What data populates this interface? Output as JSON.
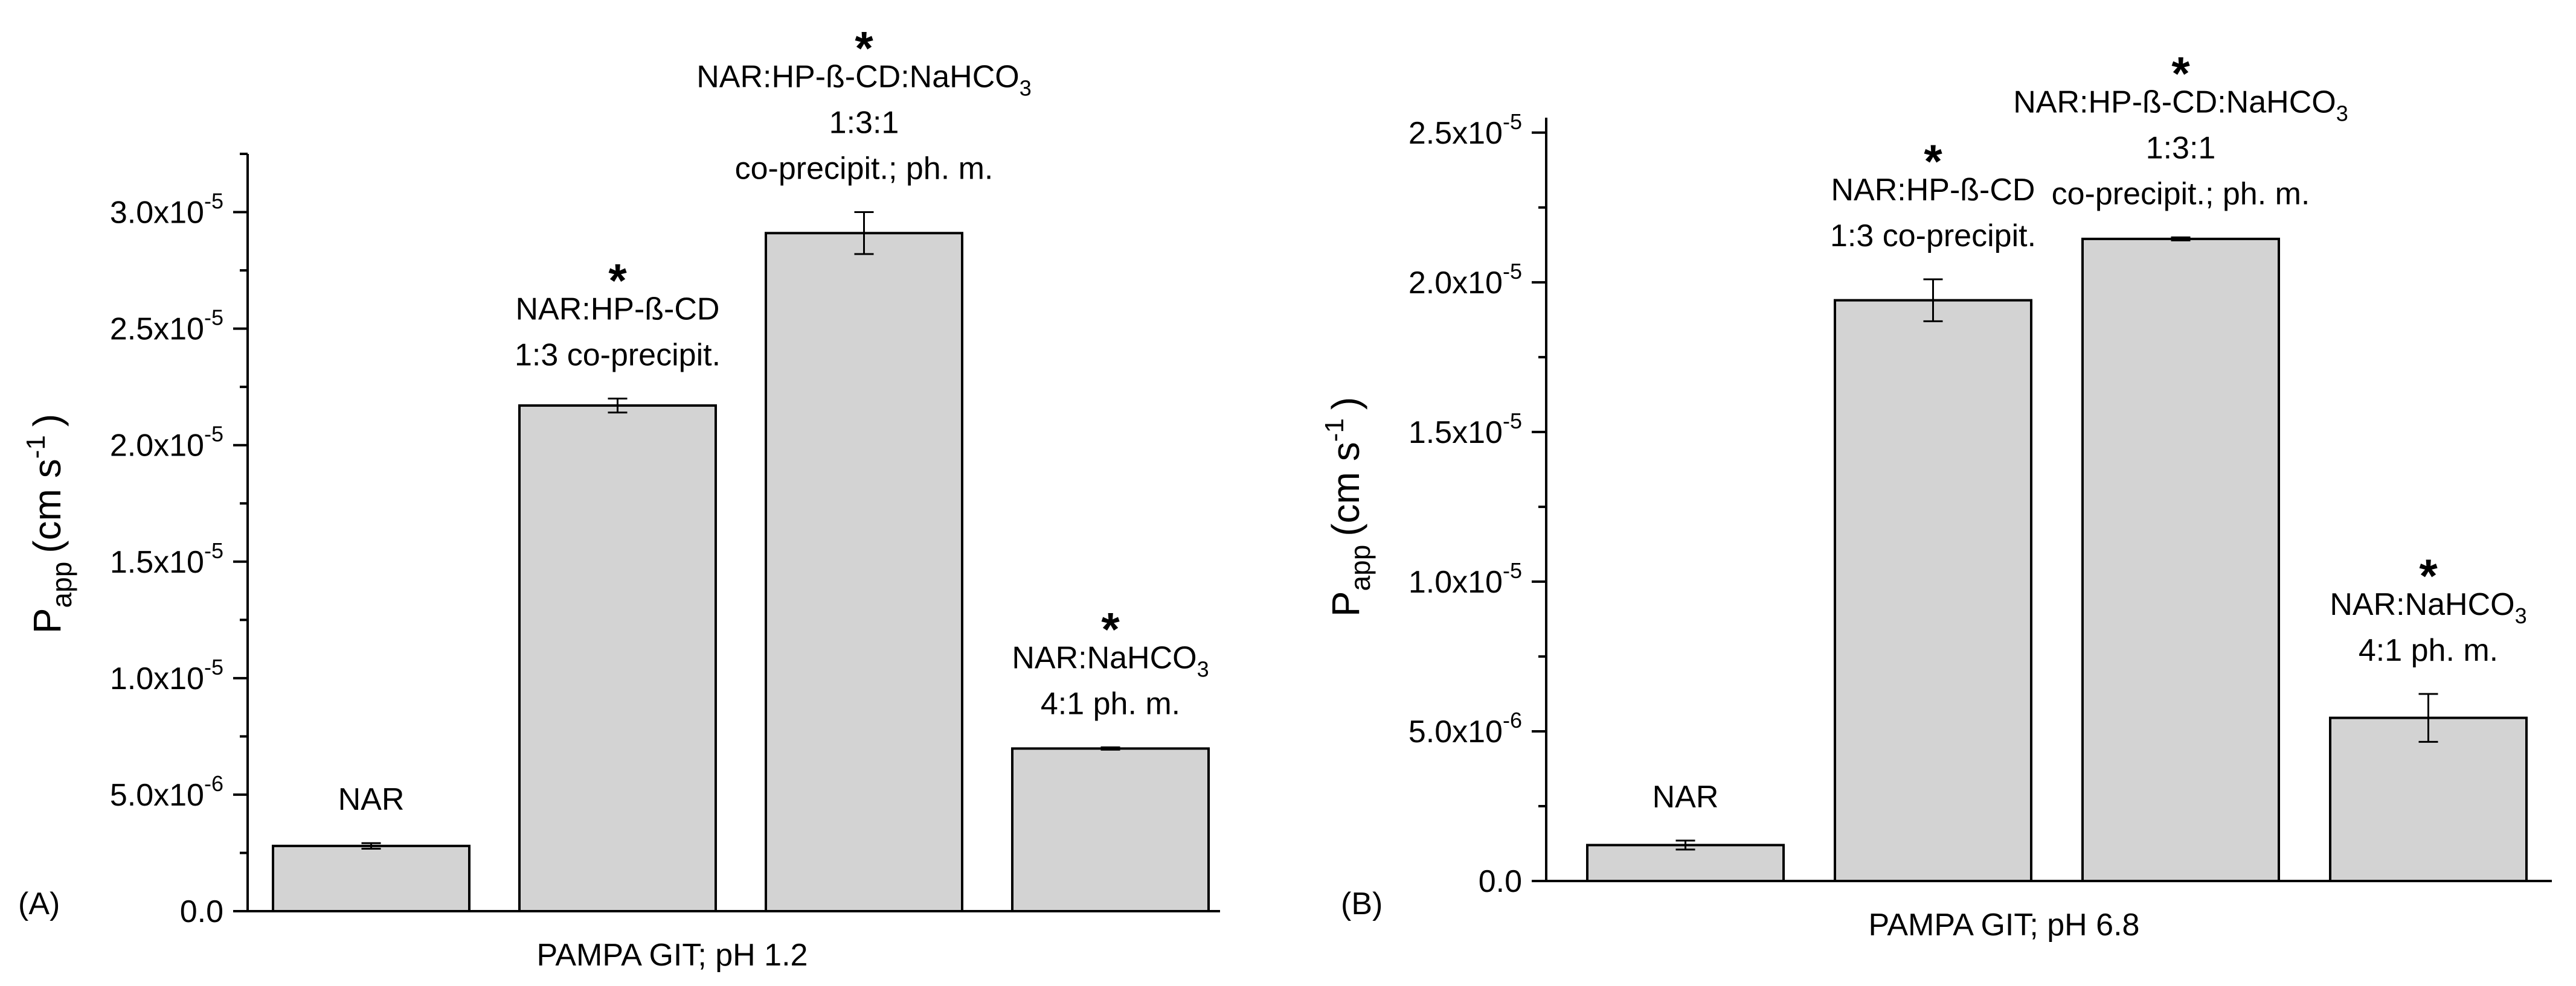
{
  "chart_data": [
    {
      "type": "bar",
      "panel_label": "(A)",
      "xlabel": "PAMPA GIT; pH 1.2",
      "ylabel_main": "P",
      "ylabel_sub": "app",
      "ylabel_unit": "(cm s",
      "ylabel_unit_sup": "-1",
      "ylabel_close": ")",
      "ylim": [
        0,
        3.25e-05
      ],
      "yticks": [
        {
          "value": 0,
          "mantissa": "0.0",
          "exp": ""
        },
        {
          "value": 5e-06,
          "mantissa": "5.0x10",
          "exp": "-6"
        },
        {
          "value": 1e-05,
          "mantissa": "1.0x10",
          "exp": "-5"
        },
        {
          "value": 1.5e-05,
          "mantissa": "1.5x10",
          "exp": "-5"
        },
        {
          "value": 2e-05,
          "mantissa": "2.0x10",
          "exp": "-5"
        },
        {
          "value": 2.5e-05,
          "mantissa": "2.5x10",
          "exp": "-5"
        },
        {
          "value": 3e-05,
          "mantissa": "3.0x10",
          "exp": "-5"
        }
      ],
      "bars": [
        {
          "value": 2.8e-06,
          "error": 1.2e-07,
          "significant": false,
          "star": "",
          "label_lines": [
            {
              "text": "NAR",
              "sub": ""
            }
          ]
        },
        {
          "value": 2.17e-05,
          "error": 3e-07,
          "significant": true,
          "star": "*",
          "label_lines": [
            {
              "text": "NAR:HP-ß-CD",
              "sub": ""
            },
            {
              "text": "1:3 co-precipit.",
              "sub": ""
            }
          ]
        },
        {
          "value": 2.91e-05,
          "error": 9e-07,
          "significant": true,
          "star": "*",
          "label_lines": [
            {
              "text": "NAR:HP-ß-CD:NaHCO",
              "sub": "3"
            },
            {
              "text": "1:3:1",
              "sub": ""
            },
            {
              "text": "co-precipit.; ph. m.",
              "sub": ""
            }
          ]
        },
        {
          "value": 6.98e-06,
          "error": 5e-08,
          "significant": true,
          "star": "*",
          "label_lines": [
            {
              "text": "NAR:NaHCO",
              "sub": "3"
            },
            {
              "text": "4:1 ph. m.",
              "sub": ""
            }
          ]
        }
      ]
    },
    {
      "type": "bar",
      "panel_label": "(B)",
      "xlabel": "PAMPA GIT; pH 6.8",
      "ylabel_main": "P",
      "ylabel_sub": "app",
      "ylabel_unit": "(cm s",
      "ylabel_unit_sup": "-1",
      "ylabel_close": ")",
      "ylim": [
        0,
        2.55e-05
      ],
      "yticks": [
        {
          "value": 0,
          "mantissa": "0.0",
          "exp": ""
        },
        {
          "value": 5e-06,
          "mantissa": "5.0x10",
          "exp": "-6"
        },
        {
          "value": 1e-05,
          "mantissa": "1.0x10",
          "exp": "-5"
        },
        {
          "value": 1.5e-05,
          "mantissa": "1.5x10",
          "exp": "-5"
        },
        {
          "value": 2e-05,
          "mantissa": "2.0x10",
          "exp": "-5"
        },
        {
          "value": 2.5e-05,
          "mantissa": "2.5x10",
          "exp": "-5"
        }
      ],
      "bars": [
        {
          "value": 1.2e-06,
          "error": 1.5e-07,
          "significant": false,
          "star": "",
          "label_lines": [
            {
              "text": "NAR",
              "sub": ""
            }
          ]
        },
        {
          "value": 1.94e-05,
          "error": 7e-07,
          "significant": true,
          "star": "*",
          "label_lines": [
            {
              "text": "NAR:HP-ß-CD",
              "sub": ""
            },
            {
              "text": "1:3 co-precipit.",
              "sub": ""
            }
          ]
        },
        {
          "value": 2.145e-05,
          "error": 5e-08,
          "significant": true,
          "star": "*",
          "label_lines": [
            {
              "text": "NAR:HP-ß-CD:NaHCO",
              "sub": "3"
            },
            {
              "text": "1:3:1",
              "sub": ""
            },
            {
              "text": "co-precipit.; ph. m.",
              "sub": ""
            }
          ]
        },
        {
          "value": 5.45e-06,
          "error": 8e-07,
          "significant": true,
          "star": "*",
          "label_lines": [
            {
              "text": "NAR:NaHCO",
              "sub": "3"
            },
            {
              "text": "4:1 ph. m.",
              "sub": ""
            }
          ]
        }
      ]
    }
  ],
  "colors": {
    "bar_fill": "#d3d3d3",
    "bar_stroke": "#000000",
    "axis": "#000000"
  }
}
